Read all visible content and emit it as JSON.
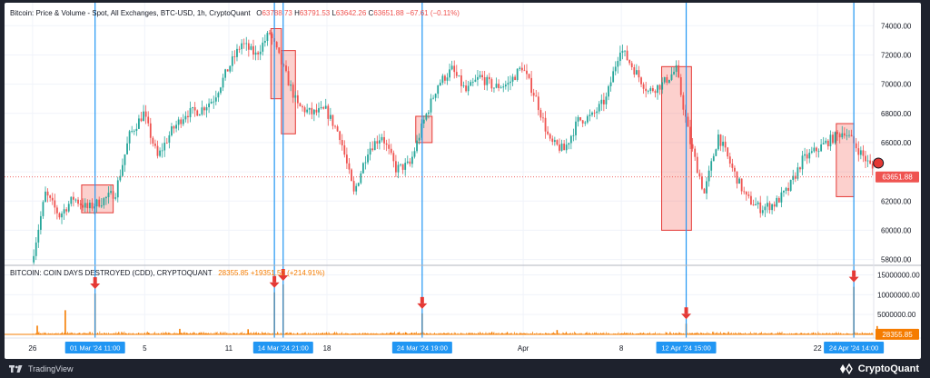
{
  "price_legend": {
    "title": "Bitcoin: Price & Volume - Spot, All Exchanges, BTC-USD, 1h, CryptoQuant",
    "open_label": "O",
    "open": "63788.73",
    "high_label": "H",
    "high": "63791.53",
    "low_label": "L",
    "low": "63642.26",
    "close_label": "C",
    "close": "63651.88",
    "change": "−67.61 (−0.11%)"
  },
  "cdd_legend": {
    "title": "BITCOIN: COIN DAYS DESTROYED (CDD), CRYPTOQUANT",
    "value": "28355.85",
    "change": "+19351.52 (+214.91%)"
  },
  "footer": {
    "tradingview_label": "TradingView",
    "cryptoquant_label": "CryptoQuant"
  },
  "colors": {
    "up": "#26a69a",
    "down": "#ef5350",
    "cdd": "#f57c00",
    "vline": "#2196f3",
    "box_fill": "rgba(244,67,54,0.25)",
    "box_stroke": "#e53935",
    "arrow": "#e53935"
  },
  "chart_data": [
    {
      "type": "candlestick",
      "title": "Bitcoin: Price & Volume - Spot, All Exchanges, BTC-USD, 1h, CryptoQuant",
      "y_ticks": [
        58000,
        60000,
        62000,
        64000,
        66000,
        68000,
        70000,
        72000,
        74000
      ],
      "y_tick_labels": [
        "58000.00",
        "60000.00",
        "62000.00",
        "64000.00",
        "66000.00",
        "68000.00",
        "70000.00",
        "72000.00",
        "74000.00"
      ],
      "ylim": [
        57600,
        75200
      ],
      "x_range": [
        "2024-02-24",
        "2024-04-26"
      ],
      "last_price": 63651.88,
      "last_price_label": "63651.88",
      "price_path": [
        [
          "2024-02-26",
          57800
        ],
        [
          "2024-02-27",
          62500
        ],
        [
          "2024-02-28",
          61000
        ],
        [
          "2024-02-29",
          62200
        ],
        [
          "2024-03-01",
          61500
        ],
        [
          "2024-03-02",
          62000
        ],
        [
          "2024-03-03",
          62600
        ],
        [
          "2024-03-04",
          66500
        ],
        [
          "2024-03-05",
          68000
        ],
        [
          "2024-03-06",
          65000
        ],
        [
          "2024-03-07",
          66800
        ],
        [
          "2024-03-08",
          68000
        ],
        [
          "2024-03-09",
          68200
        ],
        [
          "2024-03-10",
          69000
        ],
        [
          "2024-03-11",
          71000
        ],
        [
          "2024-03-12",
          72800
        ],
        [
          "2024-03-13",
          72000
        ],
        [
          "2024-03-14",
          73500
        ],
        [
          "2024-03-15",
          71000
        ],
        [
          "2024-03-16",
          68500
        ],
        [
          "2024-03-17",
          68000
        ],
        [
          "2024-03-18",
          68200
        ],
        [
          "2024-03-19",
          66500
        ],
        [
          "2024-03-20",
          62500
        ],
        [
          "2024-03-21",
          65500
        ],
        [
          "2024-03-22",
          66500
        ],
        [
          "2024-03-23",
          64200
        ],
        [
          "2024-03-24",
          64500
        ],
        [
          "2024-03-25",
          67500
        ],
        [
          "2024-03-26",
          70000
        ],
        [
          "2024-03-27",
          71000
        ],
        [
          "2024-03-28",
          69500
        ],
        [
          "2024-03-29",
          70500
        ],
        [
          "2024-03-30",
          69800
        ],
        [
          "2024-03-31",
          70000
        ],
        [
          "2024-04-01",
          71200
        ],
        [
          "2024-04-02",
          69000
        ],
        [
          "2024-04-03",
          66000
        ],
        [
          "2024-04-04",
          65500
        ],
        [
          "2024-04-05",
          67500
        ],
        [
          "2024-04-06",
          67800
        ],
        [
          "2024-04-07",
          69000
        ],
        [
          "2024-04-08",
          72500
        ],
        [
          "2024-04-09",
          71000
        ],
        [
          "2024-04-10",
          69500
        ],
        [
          "2024-04-11",
          70000
        ],
        [
          "2024-04-12",
          71000
        ],
        [
          "2024-04-13",
          66000
        ],
        [
          "2024-04-14",
          62500
        ],
        [
          "2024-04-15",
          66500
        ],
        [
          "2024-04-16",
          64200
        ],
        [
          "2024-04-17",
          62200
        ],
        [
          "2024-04-18",
          61500
        ],
        [
          "2024-04-19",
          61800
        ],
        [
          "2024-04-20",
          62800
        ],
        [
          "2024-04-21",
          64800
        ],
        [
          "2024-04-22",
          65500
        ],
        [
          "2024-04-23",
          66200
        ],
        [
          "2024-04-24",
          66800
        ],
        [
          "2024-04-25",
          65500
        ],
        [
          "2024-04-26",
          64200
        ],
        [
          "2024-04-27",
          63600
        ]
      ],
      "boxes": [
        {
          "start": "2024-02-29T12:00",
          "end": "2024-03-02T18:00",
          "low": 61200,
          "high": 63100
        },
        {
          "start": "2024-03-14T00:00",
          "end": "2024-03-14T18:00",
          "low": 69000,
          "high": 73800
        },
        {
          "start": "2024-03-14T18:00",
          "end": "2024-03-15T18:00",
          "low": 66600,
          "high": 72300
        },
        {
          "start": "2024-03-24T08:00",
          "end": "2024-03-25T12:00",
          "low": 66000,
          "high": 67800
        },
        {
          "start": "2024-04-10T21:00",
          "end": "2024-04-13T00:00",
          "low": 60000,
          "high": 71200
        },
        {
          "start": "2024-04-23T08:00",
          "end": "2024-04-24T14:00",
          "low": 62300,
          "high": 67300
        }
      ],
      "marker": {
        "date": "2024-04-26T08:00",
        "value": 64600
      }
    },
    {
      "type": "bar",
      "title": "BITCOIN: COIN DAYS DESTROYED (CDD), CRYPTOQUANT",
      "y_ticks": [
        5000000,
        10000000,
        15000000
      ],
      "y_tick_labels": [
        "5000000.00",
        "10000000.00",
        "15000000.00"
      ],
      "ylim": [
        0,
        16500000
      ],
      "last_value": 28355.85,
      "last_value_label": "28355.85",
      "spikes": [
        {
          "date": "2024-02-26T08:00",
          "value": 2200000
        },
        {
          "date": "2024-02-28T08:00",
          "value": 6100000
        },
        {
          "date": "2024-03-01T11:00",
          "value": 10300000
        },
        {
          "date": "2024-03-07T12:00",
          "value": 1400000
        },
        {
          "date": "2024-03-12T09:00",
          "value": 1300000
        },
        {
          "date": "2024-03-14T06:00",
          "value": 10600000
        },
        {
          "date": "2024-03-14T21:00",
          "value": 12600000
        },
        {
          "date": "2024-03-24T19:00",
          "value": 5300000
        },
        {
          "date": "2024-04-03T10:00",
          "value": 1100000
        },
        {
          "date": "2024-04-12T15:00",
          "value": 2700000
        },
        {
          "date": "2024-04-24T14:00",
          "value": 12000000
        },
        {
          "date": "2024-04-26T06:00",
          "value": 2100000
        }
      ]
    }
  ],
  "x_axis": {
    "ticks": [
      {
        "date": "2024-02-26",
        "label": "26"
      },
      {
        "date": "2024-03-05",
        "label": "5"
      },
      {
        "date": "2024-03-11",
        "label": "11"
      },
      {
        "date": "2024-03-18",
        "label": "18"
      },
      {
        "date": "2024-04-01",
        "label": "Apr"
      },
      {
        "date": "2024-04-08",
        "label": "8"
      },
      {
        "date": "2024-04-22",
        "label": "22"
      }
    ],
    "highlights": [
      {
        "date": "2024-03-01T11:00",
        "label": "01 Mar '24   11:00",
        "arrow": true
      },
      {
        "date": "2024-03-14T06:00",
        "label": "14",
        "arrow": true
      },
      {
        "date": "2024-03-14T21:00",
        "label": "14 Mar '24   21:00",
        "arrow": true
      },
      {
        "date": "2024-03-24T19:00",
        "label": "24 Mar '24   19:00",
        "arrow": true
      },
      {
        "date": "2024-04-12T15:00",
        "label": "12 Apr '24   15:00",
        "arrow": true
      },
      {
        "date": "2024-04-24T14:00",
        "label": "24 Apr '24   14:00",
        "arrow": true
      }
    ]
  }
}
